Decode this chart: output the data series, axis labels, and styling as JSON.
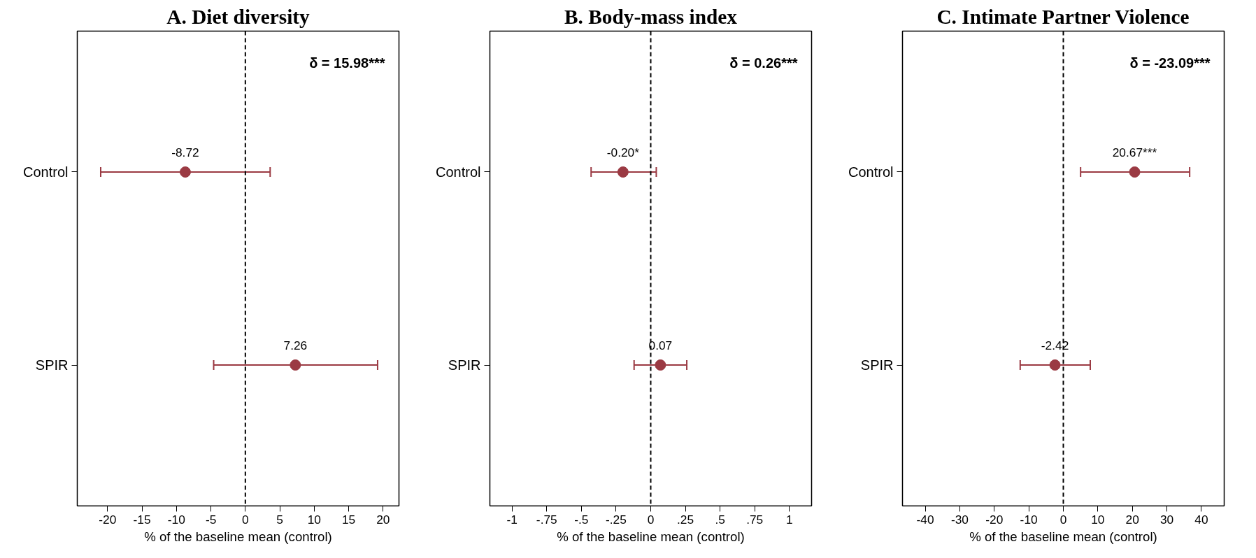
{
  "chart_data": [
    {
      "type": "scatter",
      "title": "A. Diet diversity",
      "xlabel": "% of the baseline mean (control)",
      "orientation": "horizontal",
      "categories": [
        "Control",
        "SPIR"
      ],
      "marker": "circle",
      "grid": false,
      "series": [
        {
          "color": "#9b3a43",
          "values": [
            -8.72,
            7.26
          ],
          "errors": [
            [
              -21.0,
              3.6
            ],
            [
              -4.6,
              19.2
            ]
          ],
          "value_labels": [
            "-8.72",
            "7.26"
          ]
        }
      ],
      "xlim": [
        -24.4,
        22.3
      ],
      "xticks": [
        -20,
        -15,
        -10,
        -5,
        0,
        5,
        10,
        15,
        20
      ],
      "ref_lines": [
        {
          "axis": "x",
          "value": 0,
          "line_style": "dashed",
          "color": "#000000"
        }
      ],
      "annotations": [
        "δ = 15.98***"
      ]
    },
    {
      "type": "scatter",
      "title": "B. Body-mass index",
      "xlabel": "% of the baseline mean (control)",
      "orientation": "horizontal",
      "categories": [
        "Control",
        "SPIR"
      ],
      "marker": "circle",
      "grid": false,
      "series": [
        {
          "color": "#9b3a43",
          "values": [
            -0.2,
            0.07
          ],
          "errors": [
            [
              -0.43,
              0.04
            ],
            [
              -0.12,
              0.26
            ]
          ],
          "value_labels": [
            "-0.20*",
            "0.07"
          ]
        }
      ],
      "xlim": [
        -1.16,
        1.16
      ],
      "xticks": [
        -1,
        {
          "value": -0.75,
          "label": "-.75"
        },
        {
          "value": -0.5,
          "label": "-.5"
        },
        {
          "value": -0.25,
          "label": "-.25"
        },
        0,
        {
          "value": 0.25,
          "label": ".25"
        },
        {
          "value": 0.5,
          "label": ".5"
        },
        {
          "value": 0.75,
          "label": ".75"
        },
        1
      ],
      "ref_lines": [
        {
          "axis": "x",
          "value": 0,
          "line_style": "dashed",
          "color": "#000000"
        }
      ],
      "annotations": [
        "δ = 0.26***"
      ]
    },
    {
      "type": "scatter",
      "title": "C. Intimate Partner Violence",
      "xlabel": "% of the baseline mean (control)",
      "orientation": "horizontal",
      "categories": [
        "Control",
        "SPIR"
      ],
      "marker": "circle",
      "grid": false,
      "series": [
        {
          "color": "#9b3a43",
          "values": [
            20.67,
            -2.42
          ],
          "errors": [
            [
              5.0,
              36.6
            ],
            [
              -12.5,
              7.8
            ]
          ],
          "value_labels": [
            "20.67***",
            "-2.42"
          ]
        }
      ],
      "xlim": [
        -46.6,
        46.6
      ],
      "xticks": [
        -40,
        -30,
        -20,
        -10,
        0,
        10,
        20,
        30,
        40
      ],
      "ref_lines": [
        {
          "axis": "x",
          "value": 0,
          "line_style": "dashed",
          "color": "#000000"
        }
      ],
      "annotations": [
        "δ = -23.09***"
      ]
    }
  ]
}
